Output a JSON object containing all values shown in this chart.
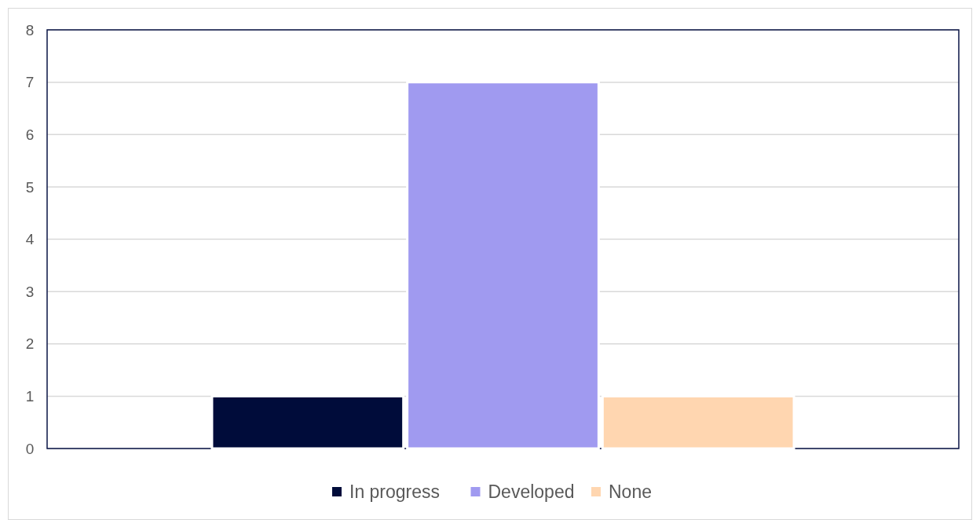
{
  "chart_data": {
    "type": "bar",
    "categories": [
      null
    ],
    "series": [
      {
        "name": "In progress",
        "color": "#000c3a",
        "values": [
          1
        ]
      },
      {
        "name": "Developed",
        "color": "#a09af0",
        "values": [
          7
        ]
      },
      {
        "name": "None",
        "color": "#ffd6b0",
        "values": [
          1
        ]
      }
    ],
    "ylim": [
      0,
      8
    ],
    "yticks": [
      0,
      1,
      2,
      3,
      4,
      5,
      6,
      7,
      8
    ],
    "grid": "y",
    "legend": "bottom"
  }
}
